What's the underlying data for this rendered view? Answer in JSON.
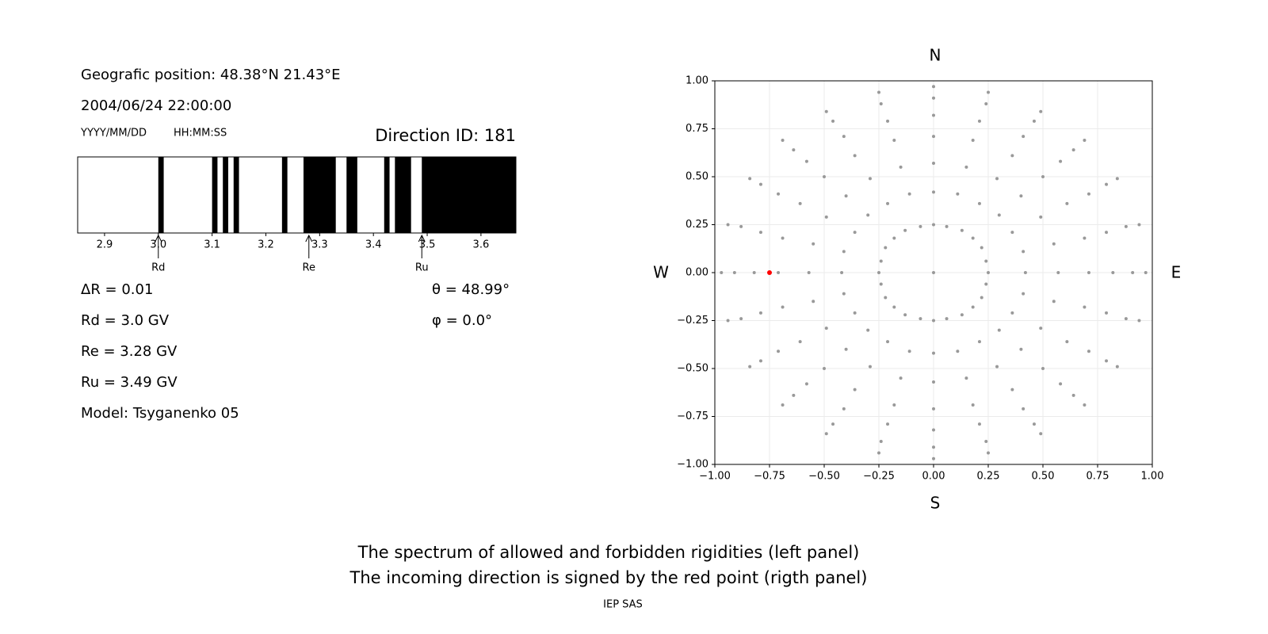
{
  "header": {
    "position": "Geografic position: 48.38°N 21.43°E",
    "datetime": "2004/06/24 22:00:00",
    "date_format": "YYYY/MM/DD",
    "time_format": "HH:MM:SS",
    "direction": "Direction ID: 181"
  },
  "info": {
    "left": [
      "ΔR = 0.01",
      "Rd = 3.0 GV",
      "Re = 3.28 GV",
      "Ru = 3.49 GV",
      "Model: Tsyganenko 05"
    ],
    "right": [
      "θ = 48.99°",
      "φ = 0.0°"
    ]
  },
  "chart_data": [
    {
      "type": "spectrum",
      "xlim": [
        2.85,
        3.665
      ],
      "xticks": [
        2.9,
        {
          "value": 3,
          "label": "3.0"
        },
        3.1,
        3.2,
        3.3,
        3.4,
        3.5,
        3.6
      ],
      "color": "#000000",
      "forbidden": [
        [
          3.0,
          3.01
        ],
        [
          3.1,
          3.11
        ],
        [
          3.12,
          3.13
        ],
        [
          3.14,
          3.15
        ],
        [
          3.23,
          3.24
        ],
        [
          3.27,
          3.33
        ],
        [
          3.35,
          3.37
        ],
        [
          3.42,
          3.43
        ],
        [
          3.44,
          3.47
        ],
        [
          3.49,
          3.665
        ]
      ],
      "markers": [
        {
          "label": "Rd",
          "value": 3.0
        },
        {
          "label": "Re",
          "value": 3.28
        },
        {
          "label": "Ru",
          "value": 3.49
        }
      ]
    },
    {
      "type": "scatter",
      "xlim": [
        -1,
        1
      ],
      "ylim": [
        -1,
        1
      ],
      "grid": true,
      "xticks": [
        {
          "value": -1,
          "label": "−1.00"
        },
        {
          "value": -0.75,
          "label": "−0.75"
        },
        {
          "value": -0.5,
          "label": "−0.50"
        },
        {
          "value": -0.25,
          "label": "−0.25"
        },
        {
          "value": 0,
          "label": "0.00"
        },
        {
          "value": 0.25,
          "label": "0.25"
        },
        {
          "value": 0.5,
          "label": "0.50"
        },
        {
          "value": 0.75,
          "label": "0.75"
        },
        {
          "value": 1,
          "label": "1.00"
        }
      ],
      "yticks": [
        {
          "value": -1,
          "label": "−1.00"
        },
        {
          "value": -0.75,
          "label": "−0.75"
        },
        {
          "value": -0.5,
          "label": "−0.50"
        },
        {
          "value": -0.25,
          "label": "−0.25"
        },
        {
          "value": 0,
          "label": "0.00"
        },
        {
          "value": 0.25,
          "label": "0.25"
        },
        {
          "value": 0.5,
          "label": "0.50"
        },
        {
          "value": 0.75,
          "label": "0.75"
        },
        {
          "value": 1,
          "label": "1.00"
        }
      ],
      "compass": {
        "north": "N",
        "south": "S",
        "west": "W",
        "east": "E"
      },
      "series": [
        {
          "color": "#999999",
          "x": [
            0,
            0.25,
            0.24,
            0.22,
            0.18,
            0.13,
            0.06,
            0,
            -0.06,
            -0.13,
            -0.18,
            -0.22,
            -0.24,
            -0.25,
            -0.24,
            -0.22,
            -0.18,
            -0.13,
            -0.06,
            0,
            0.06,
            0.13,
            0.18,
            0.22,
            0.24,
            0.42,
            0.41,
            0.36,
            0.3,
            0.21,
            0.11,
            0,
            -0.11,
            -0.21,
            -0.3,
            -0.36,
            -0.41,
            -0.42,
            -0.41,
            -0.36,
            -0.3,
            -0.21,
            -0.11,
            0,
            0.11,
            0.21,
            0.3,
            0.36,
            0.41,
            0.57,
            0.55,
            0.49,
            0.4,
            0.29,
            0.15,
            0,
            -0.15,
            -0.29,
            -0.4,
            -0.49,
            -0.55,
            -0.57,
            -0.55,
            -0.49,
            -0.4,
            -0.29,
            -0.15,
            0,
            0.15,
            0.29,
            0.4,
            0.49,
            0.55,
            0.71,
            0.69,
            0.61,
            0.5,
            0.36,
            0.18,
            0,
            -0.18,
            -0.36,
            -0.5,
            -0.61,
            -0.69,
            -0.71,
            -0.69,
            -0.61,
            -0.5,
            -0.36,
            -0.18,
            0,
            0.18,
            0.36,
            0.5,
            0.61,
            0.69,
            0.82,
            0.79,
            0.71,
            0.58,
            0.41,
            0.21,
            0,
            -0.21,
            -0.41,
            -0.58,
            -0.71,
            -0.79,
            -0.82,
            -0.79,
            -0.71,
            -0.58,
            -0.41,
            -0.21,
            0,
            0.21,
            0.41,
            0.58,
            0.71,
            0.79,
            0.91,
            0.88,
            0.79,
            0.64,
            0.46,
            0.24,
            0,
            -0.24,
            -0.46,
            -0.64,
            -0.79,
            -0.88,
            -0.91,
            -0.88,
            -0.79,
            -0.64,
            -0.46,
            -0.24,
            0,
            0.24,
            0.46,
            0.64,
            0.79,
            0.88,
            0.97,
            0.94,
            0.84,
            0.69,
            0.49,
            0.25,
            0,
            -0.25,
            -0.49,
            -0.69,
            -0.84,
            -0.94,
            -0.97,
            -0.94,
            -0.84,
            -0.69,
            -0.49,
            -0.25,
            0,
            0.25,
            0.49,
            0.69,
            0.84,
            0.94
          ],
          "y": [
            0,
            0,
            0.06,
            0.13,
            0.18,
            0.22,
            0.24,
            0.25,
            0.24,
            0.22,
            0.18,
            0.13,
            0.06,
            0,
            -0.06,
            -0.13,
            -0.18,
            -0.22,
            -0.24,
            -0.25,
            -0.24,
            -0.22,
            -0.18,
            -0.13,
            -0.06,
            0,
            0.11,
            0.21,
            0.3,
            0.36,
            0.41,
            0.42,
            0.41,
            0.36,
            0.3,
            0.21,
            0.11,
            0,
            -0.11,
            -0.21,
            -0.3,
            -0.36,
            -0.41,
            -0.42,
            -0.41,
            -0.36,
            -0.3,
            -0.21,
            -0.11,
            0,
            0.15,
            0.29,
            0.4,
            0.49,
            0.55,
            0.57,
            0.55,
            0.49,
            0.4,
            0.29,
            0.15,
            0,
            -0.15,
            -0.29,
            -0.4,
            -0.49,
            -0.55,
            -0.57,
            -0.55,
            -0.49,
            -0.4,
            -0.29,
            -0.15,
            0,
            0.18,
            0.36,
            0.5,
            0.61,
            0.69,
            0.71,
            0.69,
            0.61,
            0.5,
            0.36,
            0.18,
            0,
            -0.18,
            -0.36,
            -0.5,
            -0.61,
            -0.69,
            -0.71,
            -0.69,
            -0.61,
            -0.5,
            -0.36,
            -0.18,
            0,
            0.21,
            0.41,
            0.58,
            0.71,
            0.79,
            0.82,
            0.79,
            0.71,
            0.58,
            0.41,
            0.21,
            0,
            -0.21,
            -0.41,
            -0.58,
            -0.71,
            -0.79,
            -0.82,
            -0.79,
            -0.71,
            -0.58,
            -0.41,
            -0.21,
            0,
            0.24,
            0.46,
            0.64,
            0.79,
            0.88,
            0.91,
            0.88,
            0.79,
            0.64,
            0.46,
            0.24,
            0,
            -0.24,
            -0.46,
            -0.64,
            -0.79,
            -0.88,
            -0.91,
            -0.88,
            -0.79,
            -0.64,
            -0.46,
            -0.24,
            0,
            0.25,
            0.49,
            0.69,
            0.84,
            0.94,
            0.97,
            0.94,
            0.84,
            0.69,
            0.49,
            0.25,
            0,
            -0.25,
            -0.49,
            -0.69,
            -0.84,
            -0.94,
            -0.97,
            -0.94,
            -0.84,
            -0.69,
            -0.49,
            -0.25
          ]
        },
        {
          "color": "#ff0000",
          "x": [
            -0.75
          ],
          "y": [
            0
          ]
        }
      ]
    }
  ],
  "caption": [
    "The spectrum of allowed and forbidden rigidities (left panel)",
    "The incoming direction is signed by the red point (rigth panel)"
  ],
  "credit": "IEP SAS"
}
